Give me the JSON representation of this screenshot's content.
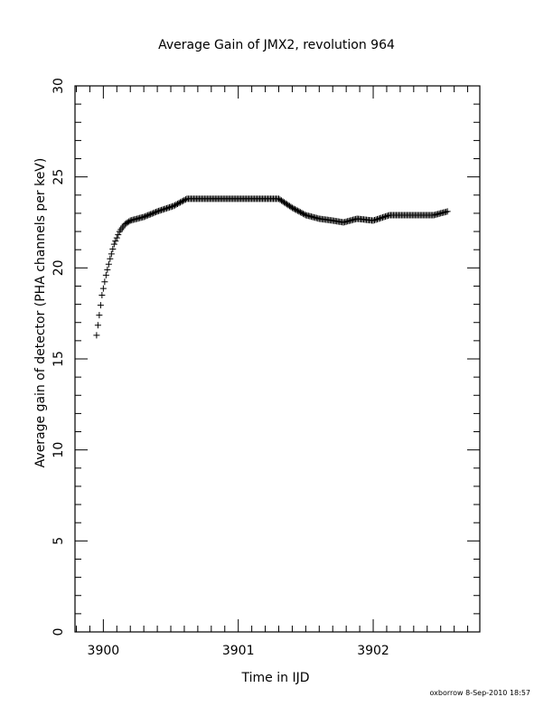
{
  "chart_data": {
    "type": "scatter",
    "title": "Average Gain of JMX2, revolution 964",
    "xlabel": "Time in IJD",
    "ylabel": "Average gain of detector (PHA channels per keV)",
    "footer": "oxborrow  8-Sep-2010 18:57",
    "xlim": [
      3899.79,
      3902.79
    ],
    "ylim": [
      0,
      30
    ],
    "x_ticks": [
      {
        "value": 3900,
        "label": "3900"
      },
      {
        "value": 3901,
        "label": "3901"
      },
      {
        "value": 3902,
        "label": "3902"
      }
    ],
    "y_ticks": [
      {
        "value": 0,
        "label": "0"
      },
      {
        "value": 5,
        "label": "5"
      },
      {
        "value": 10,
        "label": "10"
      },
      {
        "value": 15,
        "label": "15"
      },
      {
        "value": 20,
        "label": "20"
      },
      {
        "value": 25,
        "label": "25"
      },
      {
        "value": 30,
        "label": "30"
      }
    ],
    "grid": false,
    "marker": "+",
    "color": "#000000",
    "curve": [
      [
        3899.95,
        16.3
      ],
      [
        3899.97,
        17.4
      ],
      [
        3899.99,
        18.5
      ],
      [
        3900.02,
        19.6
      ],
      [
        3900.05,
        20.5
      ],
      [
        3900.08,
        21.3
      ],
      [
        3900.12,
        22.0
      ],
      [
        3900.16,
        22.4
      ],
      [
        3900.2,
        22.6
      ],
      [
        3900.3,
        22.8
      ],
      [
        3900.4,
        23.1
      ],
      [
        3900.52,
        23.4
      ],
      [
        3900.62,
        23.8
      ],
      [
        3901.0,
        23.8
      ],
      [
        3901.3,
        23.8
      ],
      [
        3901.4,
        23.3
      ],
      [
        3901.5,
        22.9
      ],
      [
        3901.6,
        22.7
      ],
      [
        3901.7,
        22.6
      ],
      [
        3901.78,
        22.5
      ],
      [
        3901.88,
        22.7
      ],
      [
        3902.0,
        22.6
      ],
      [
        3902.12,
        22.9
      ],
      [
        3902.3,
        22.9
      ],
      [
        3902.45,
        22.9
      ],
      [
        3902.55,
        23.1
      ]
    ],
    "point_spacing": 0.01
  }
}
